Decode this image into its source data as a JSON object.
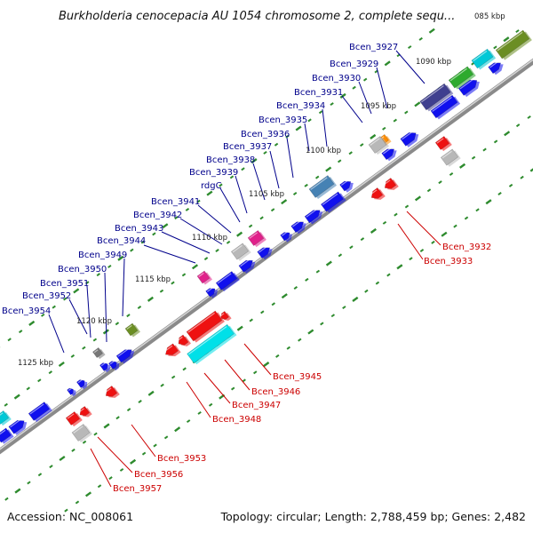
{
  "map": {
    "title": "Burkholderia cenocepacia AU 1054 chromosome 2, complete sequ...",
    "accession": "Accession: NC_008061",
    "summary": "Topology: circular; Length: 2,788,459 bp; Genes: 2,482"
  },
  "colors": {
    "chromosome": "#7f7f7f",
    "plus_label": "#00008b",
    "minus_label": "#cc0000",
    "tick": "#2e8b2e"
  },
  "scale_labels": [
    {
      "text": "085 kbp"
    },
    {
      "text": "1090 kbp"
    },
    {
      "text": "1095 kbp"
    },
    {
      "text": "1100 kbp"
    },
    {
      "text": "1105 kbp"
    },
    {
      "text": "1110 kbp"
    },
    {
      "text": "1115 kbp"
    },
    {
      "text": "1120 kbp"
    },
    {
      "text": "1125 kbp"
    }
  ],
  "plus_labels": [
    {
      "text": "Bcen_3927"
    },
    {
      "text": "Bcen_3929"
    },
    {
      "text": "Bcen_3930"
    },
    {
      "text": "Bcen_3931"
    },
    {
      "text": "Bcen_3934"
    },
    {
      "text": "Bcen_3935"
    },
    {
      "text": "Bcen_3936"
    },
    {
      "text": "Bcen_3937"
    },
    {
      "text": "Bcen_3938"
    },
    {
      "text": "Bcen_3939"
    },
    {
      "text": "rdgC"
    },
    {
      "text": "Bcen_3941"
    },
    {
      "text": "Bcen_3942"
    },
    {
      "text": "Bcen_3943"
    },
    {
      "text": "Bcen_3944"
    },
    {
      "text": "Bcen_3949"
    },
    {
      "text": "Bcen_3950"
    },
    {
      "text": "Bcen_3951"
    },
    {
      "text": "Bcen_3952"
    },
    {
      "text": "Bcen_3954"
    }
  ],
  "minus_labels": [
    {
      "text": "Bcen_3932"
    },
    {
      "text": "Bcen_3933"
    },
    {
      "text": "Bcen_3945"
    },
    {
      "text": "Bcen_3946"
    },
    {
      "text": "Bcen_3947"
    },
    {
      "text": "Bcen_3948"
    },
    {
      "text": "Bcen_3953"
    },
    {
      "text": "Bcen_3956"
    },
    {
      "text": "Bcen_3957"
    }
  ]
}
